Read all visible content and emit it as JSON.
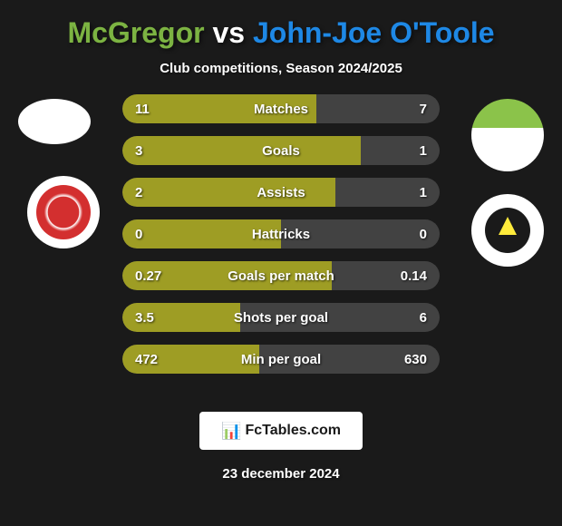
{
  "title": {
    "player1": "McGregor",
    "vs": "vs",
    "player2": "John-Joe O'Toole"
  },
  "subtitle": "Club competitions, Season 2024/2025",
  "colors": {
    "player1": "#7cb342",
    "player2": "#1e88e5",
    "bar_fill": "#9e9d24",
    "bar_bg": "#424242",
    "background": "#1a1a1a",
    "text": "#ffffff"
  },
  "stats": [
    {
      "label": "Matches",
      "p1": "11",
      "p2": "7",
      "p1_width": 61,
      "p2_width": 39
    },
    {
      "label": "Goals",
      "p1": "3",
      "p2": "1",
      "p1_width": 75,
      "p2_width": 25
    },
    {
      "label": "Assists",
      "p1": "2",
      "p2": "1",
      "p1_width": 67,
      "p2_width": 33
    },
    {
      "label": "Hattricks",
      "p1": "0",
      "p2": "0",
      "p1_width": 50,
      "p2_width": 50
    },
    {
      "label": "Goals per match",
      "p1": "0.27",
      "p2": "0.14",
      "p1_width": 66,
      "p2_width": 34
    },
    {
      "label": "Shots per goal",
      "p1": "3.5",
      "p2": "6",
      "p1_width": 37,
      "p2_width": 63
    },
    {
      "label": "Min per goal",
      "p1": "472",
      "p2": "630",
      "p1_width": 43,
      "p2_width": 57
    }
  ],
  "footer": {
    "site": "FcTables.com",
    "date": "23 december 2024"
  }
}
